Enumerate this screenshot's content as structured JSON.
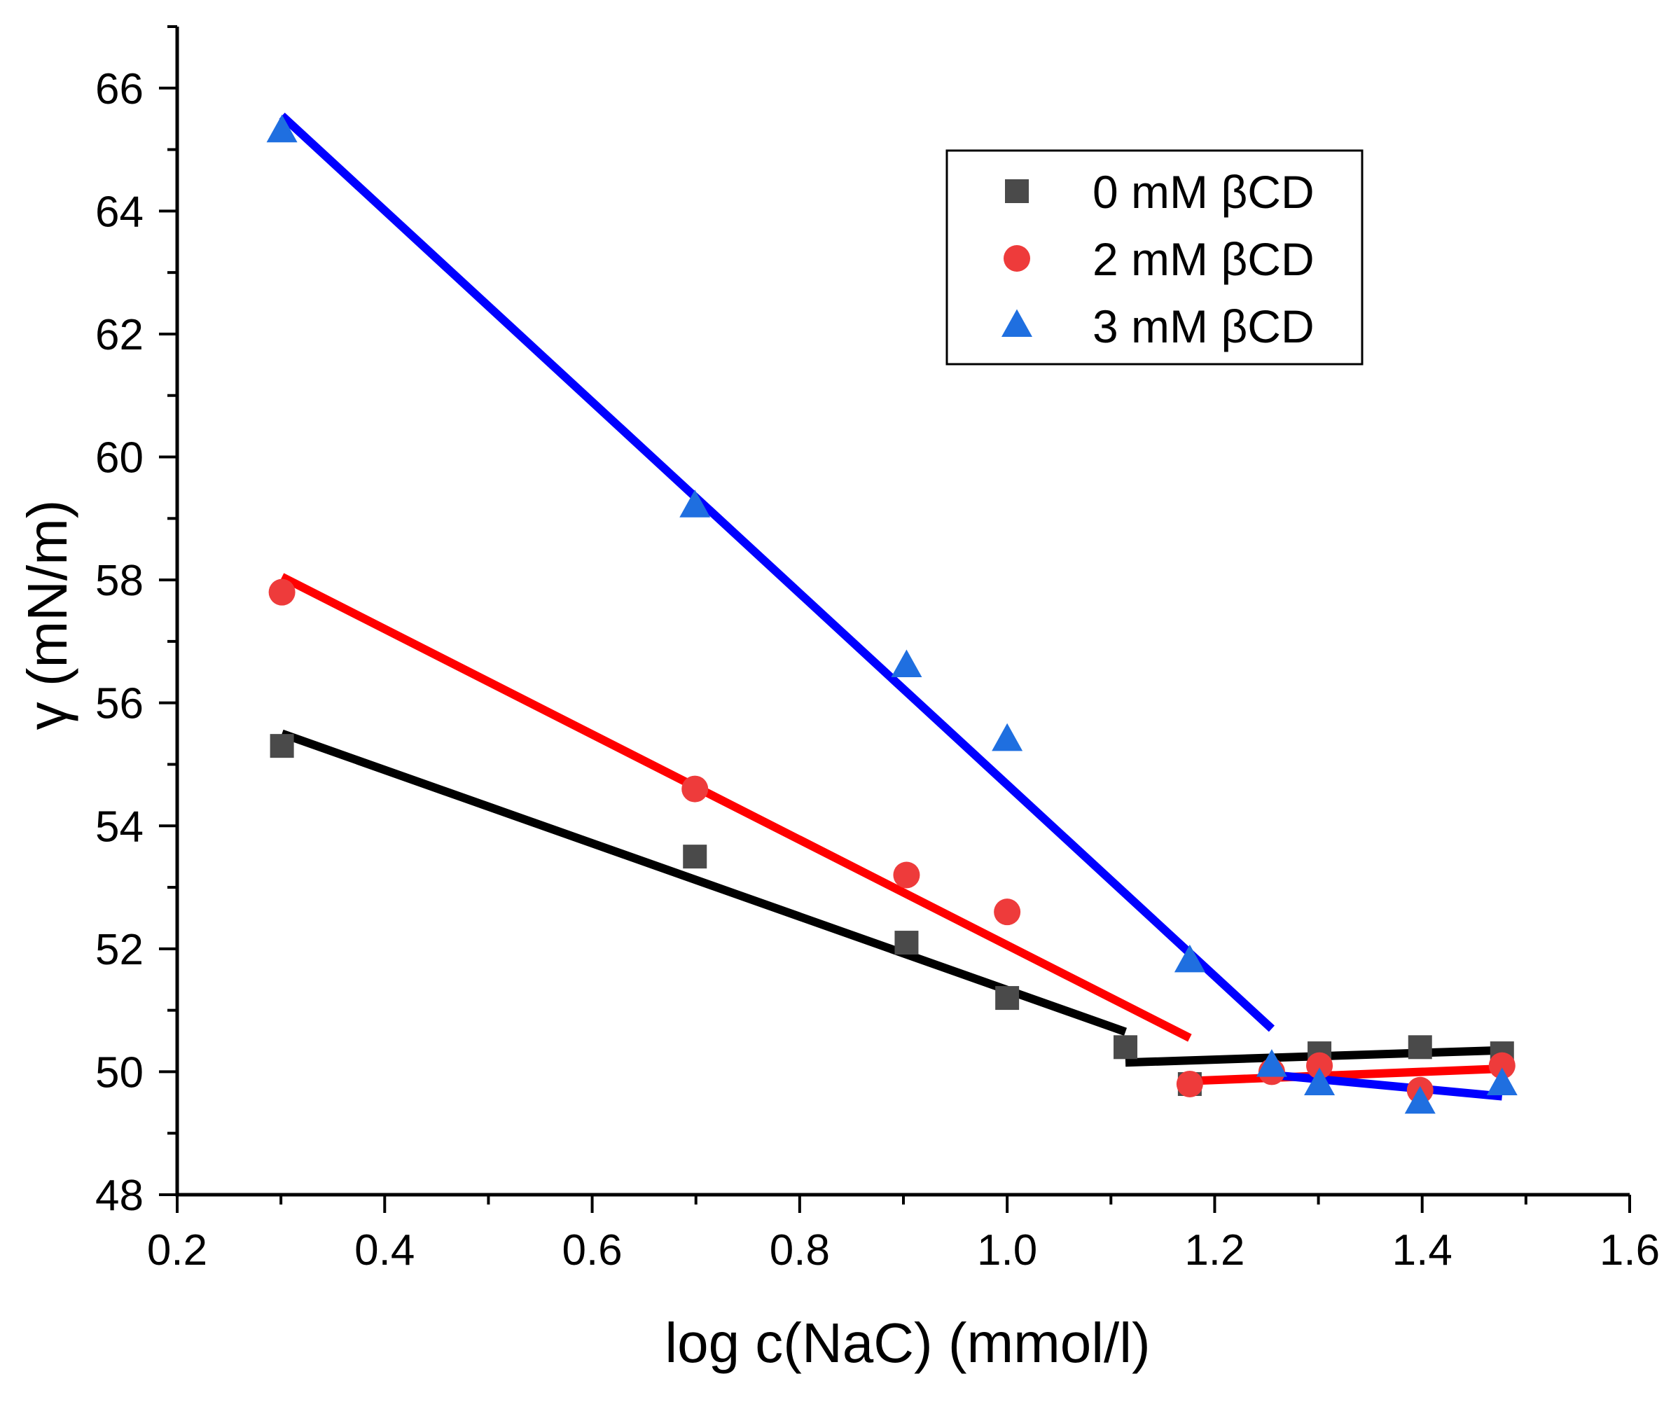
{
  "chart_data": {
    "type": "scatter",
    "title": "",
    "xlabel": "log c(NaC) (mmol/l)",
    "ylabel": "γ (mN/m)",
    "xlim": [
      0.2,
      1.6
    ],
    "ylim": [
      48,
      67
    ],
    "xticks": [
      0.2,
      0.4,
      0.6,
      0.8,
      1.0,
      1.2,
      1.4,
      1.6
    ],
    "xtick_labels": [
      "0.2",
      "0.4",
      "0.6",
      "0.8",
      "1.0",
      "1.2",
      "1.4",
      "1.6"
    ],
    "yticks": [
      48,
      50,
      52,
      54,
      56,
      58,
      60,
      62,
      64,
      66
    ],
    "ytick_labels": [
      "48",
      "50",
      "52",
      "54",
      "56",
      "58",
      "60",
      "62",
      "64",
      "66"
    ],
    "grid": false,
    "legend_position": "top-right",
    "series": [
      {
        "name": "0 mM βCD",
        "marker": "square",
        "marker_color": "#4a4a4a",
        "line_color": "#000000",
        "x": [
          0.301,
          0.699,
          0.903,
          1.0,
          1.114,
          1.176,
          1.301,
          1.398,
          1.477
        ],
        "y": [
          55.3,
          53.5,
          52.1,
          51.2,
          50.4,
          49.8,
          50.3,
          50.4,
          50.3
        ],
        "fits": [
          {
            "x": [
              0.301,
              1.114
            ],
            "y": [
              55.5,
              50.65
            ]
          },
          {
            "x": [
              1.114,
              1.477
            ],
            "y": [
              50.15,
              50.35
            ]
          }
        ]
      },
      {
        "name": "2 mM βCD",
        "marker": "circle",
        "marker_color": "#ee3b3b",
        "line_color": "#ff0000",
        "x": [
          0.301,
          0.699,
          0.903,
          1.0,
          1.176,
          1.255,
          1.301,
          1.398,
          1.477
        ],
        "y": [
          57.8,
          54.6,
          53.2,
          52.6,
          49.8,
          50.0,
          50.1,
          49.7,
          50.1
        ],
        "fits": [
          {
            "x": [
              0.301,
              1.176
            ],
            "y": [
              58.05,
              50.55
            ]
          },
          {
            "x": [
              1.176,
              1.477
            ],
            "y": [
              49.85,
              50.05
            ]
          }
        ]
      },
      {
        "name": "3 mM βCD",
        "marker": "triangle",
        "marker_color": "#1f6fe0",
        "line_color": "#0000ff",
        "x": [
          0.301,
          0.699,
          0.903,
          1.0,
          1.176,
          1.255,
          1.301,
          1.398,
          1.477
        ],
        "y": [
          65.3,
          59.2,
          56.6,
          55.4,
          51.8,
          50.1,
          49.8,
          49.5,
          49.8
        ],
        "fits": [
          {
            "x": [
              0.301,
              1.255
            ],
            "y": [
              65.55,
              50.7
            ]
          },
          {
            "x": [
              1.255,
              1.477
            ],
            "y": [
              49.95,
              49.6
            ]
          }
        ]
      }
    ]
  }
}
